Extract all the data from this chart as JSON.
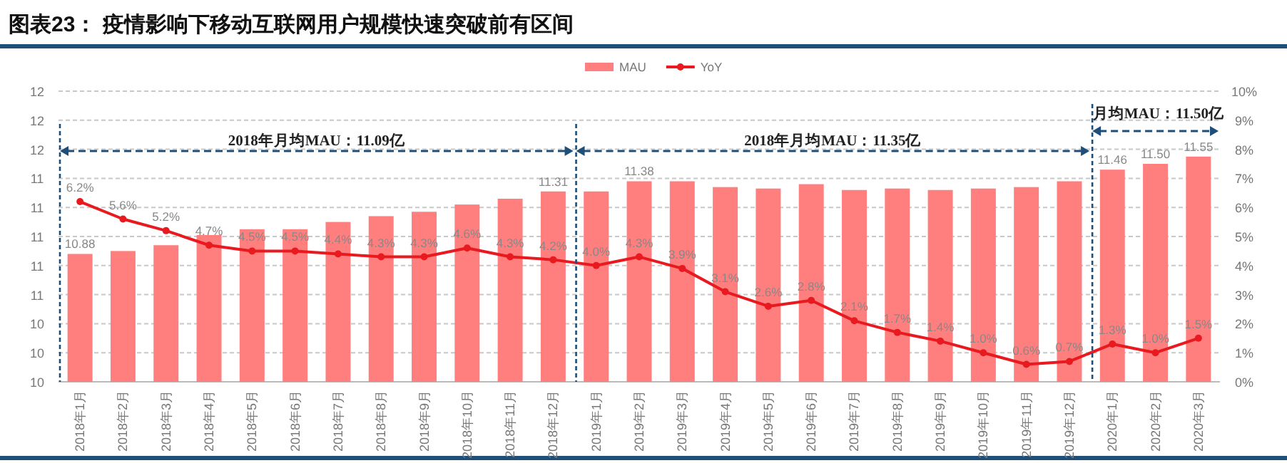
{
  "chart_data": {
    "type": "bar",
    "title": "图表23：  疫情影响下移动互联网用户规模快速突破前有区间",
    "categories": [
      "2018年1月",
      "2018年2月",
      "2018年3月",
      "2018年4月",
      "2018年5月",
      "2018年6月",
      "2018年7月",
      "2018年8月",
      "2018年9月",
      "2018年10月",
      "2018年11月",
      "2018年12月",
      "2019年1月",
      "2019年2月",
      "2019年3月",
      "2019年4月",
      "2019年5月",
      "2019年6月",
      "2019年7月",
      "2019年8月",
      "2019年9月",
      "2019年10月",
      "2019年11月",
      "2019年12月",
      "2020年1月",
      "2020年2月",
      "2020年3月"
    ],
    "series": [
      {
        "name": "MAU",
        "color": "#ff7f7f",
        "values": [
          10.88,
          10.9,
          10.94,
          11.01,
          11.05,
          11.05,
          11.1,
          11.14,
          11.17,
          11.22,
          11.26,
          11.31,
          11.31,
          11.38,
          11.38,
          11.34,
          11.33,
          11.36,
          11.32,
          11.33,
          11.32,
          11.33,
          11.34,
          11.38,
          11.46,
          11.5,
          11.55
        ],
        "value_labels": [
          "10.88",
          null,
          null,
          null,
          null,
          null,
          null,
          null,
          null,
          null,
          null,
          "11.31",
          null,
          "11.38",
          null,
          null,
          null,
          null,
          null,
          null,
          null,
          null,
          null,
          null,
          "11.46",
          "11.50",
          "11.55"
        ]
      },
      {
        "name": "YoY",
        "type": "line",
        "axis": "y2",
        "color": "#e8191f",
        "values": [
          6.2,
          5.6,
          5.2,
          4.7,
          4.5,
          4.5,
          4.4,
          4.3,
          4.3,
          4.6,
          4.3,
          4.2,
          4.0,
          4.3,
          3.9,
          3.1,
          2.6,
          2.8,
          2.1,
          1.7,
          1.4,
          1.0,
          0.6,
          0.7,
          1.3,
          1.0,
          1.5
        ],
        "value_labels": [
          "6.2%",
          "5.6%",
          "5.2%",
          "4.7%",
          "4.5%",
          "4.5%",
          "4.4%",
          "4.3%",
          "4.3%",
          "4.6%",
          "4.3%",
          "4.2%",
          "4.0%",
          "4.3%",
          "3.9%",
          "3.1%",
          "2.6%",
          "2.8%",
          "2.1%",
          "1.7%",
          "1.4%",
          "1.0%",
          "0.6%",
          "0.7%",
          "1.3%",
          "1.0%",
          "1.5%"
        ]
      }
    ],
    "marker": "circle",
    "ylim": [
      10,
      12
    ],
    "yticks": [
      {
        "value": 10,
        "label": "10"
      },
      {
        "value": 10.2,
        "label": "10"
      },
      {
        "value": 10.4,
        "label": "10"
      },
      {
        "value": 10.6,
        "label": "11"
      },
      {
        "value": 10.8,
        "label": "11"
      },
      {
        "value": 11,
        "label": "11"
      },
      {
        "value": 11.2,
        "label": "11"
      },
      {
        "value": 11.4,
        "label": "11"
      },
      {
        "value": 11.6,
        "label": "12"
      },
      {
        "value": 11.8,
        "label": "12"
      },
      {
        "value": 12,
        "label": "12"
      }
    ],
    "y2lim": [
      0,
      10
    ],
    "y2ticks": [
      {
        "value": 0,
        "label": "0%"
      },
      {
        "value": 1,
        "label": "1%"
      },
      {
        "value": 2,
        "label": "2%"
      },
      {
        "value": 3,
        "label": "3%"
      },
      {
        "value": 4,
        "label": "4%"
      },
      {
        "value": 5,
        "label": "5%"
      },
      {
        "value": 6,
        "label": "6%"
      },
      {
        "value": 7,
        "label": "7%"
      },
      {
        "value": 8,
        "label": "8%"
      },
      {
        "value": 9,
        "label": "9%"
      },
      {
        "value": 10,
        "label": "10%"
      }
    ],
    "grid": "y",
    "legend": "top",
    "annotations": [
      "2018年月均MAU：11.09亿",
      "2018年月均MAU：11.35亿",
      "月均MAU：11.50亿"
    ]
  }
}
